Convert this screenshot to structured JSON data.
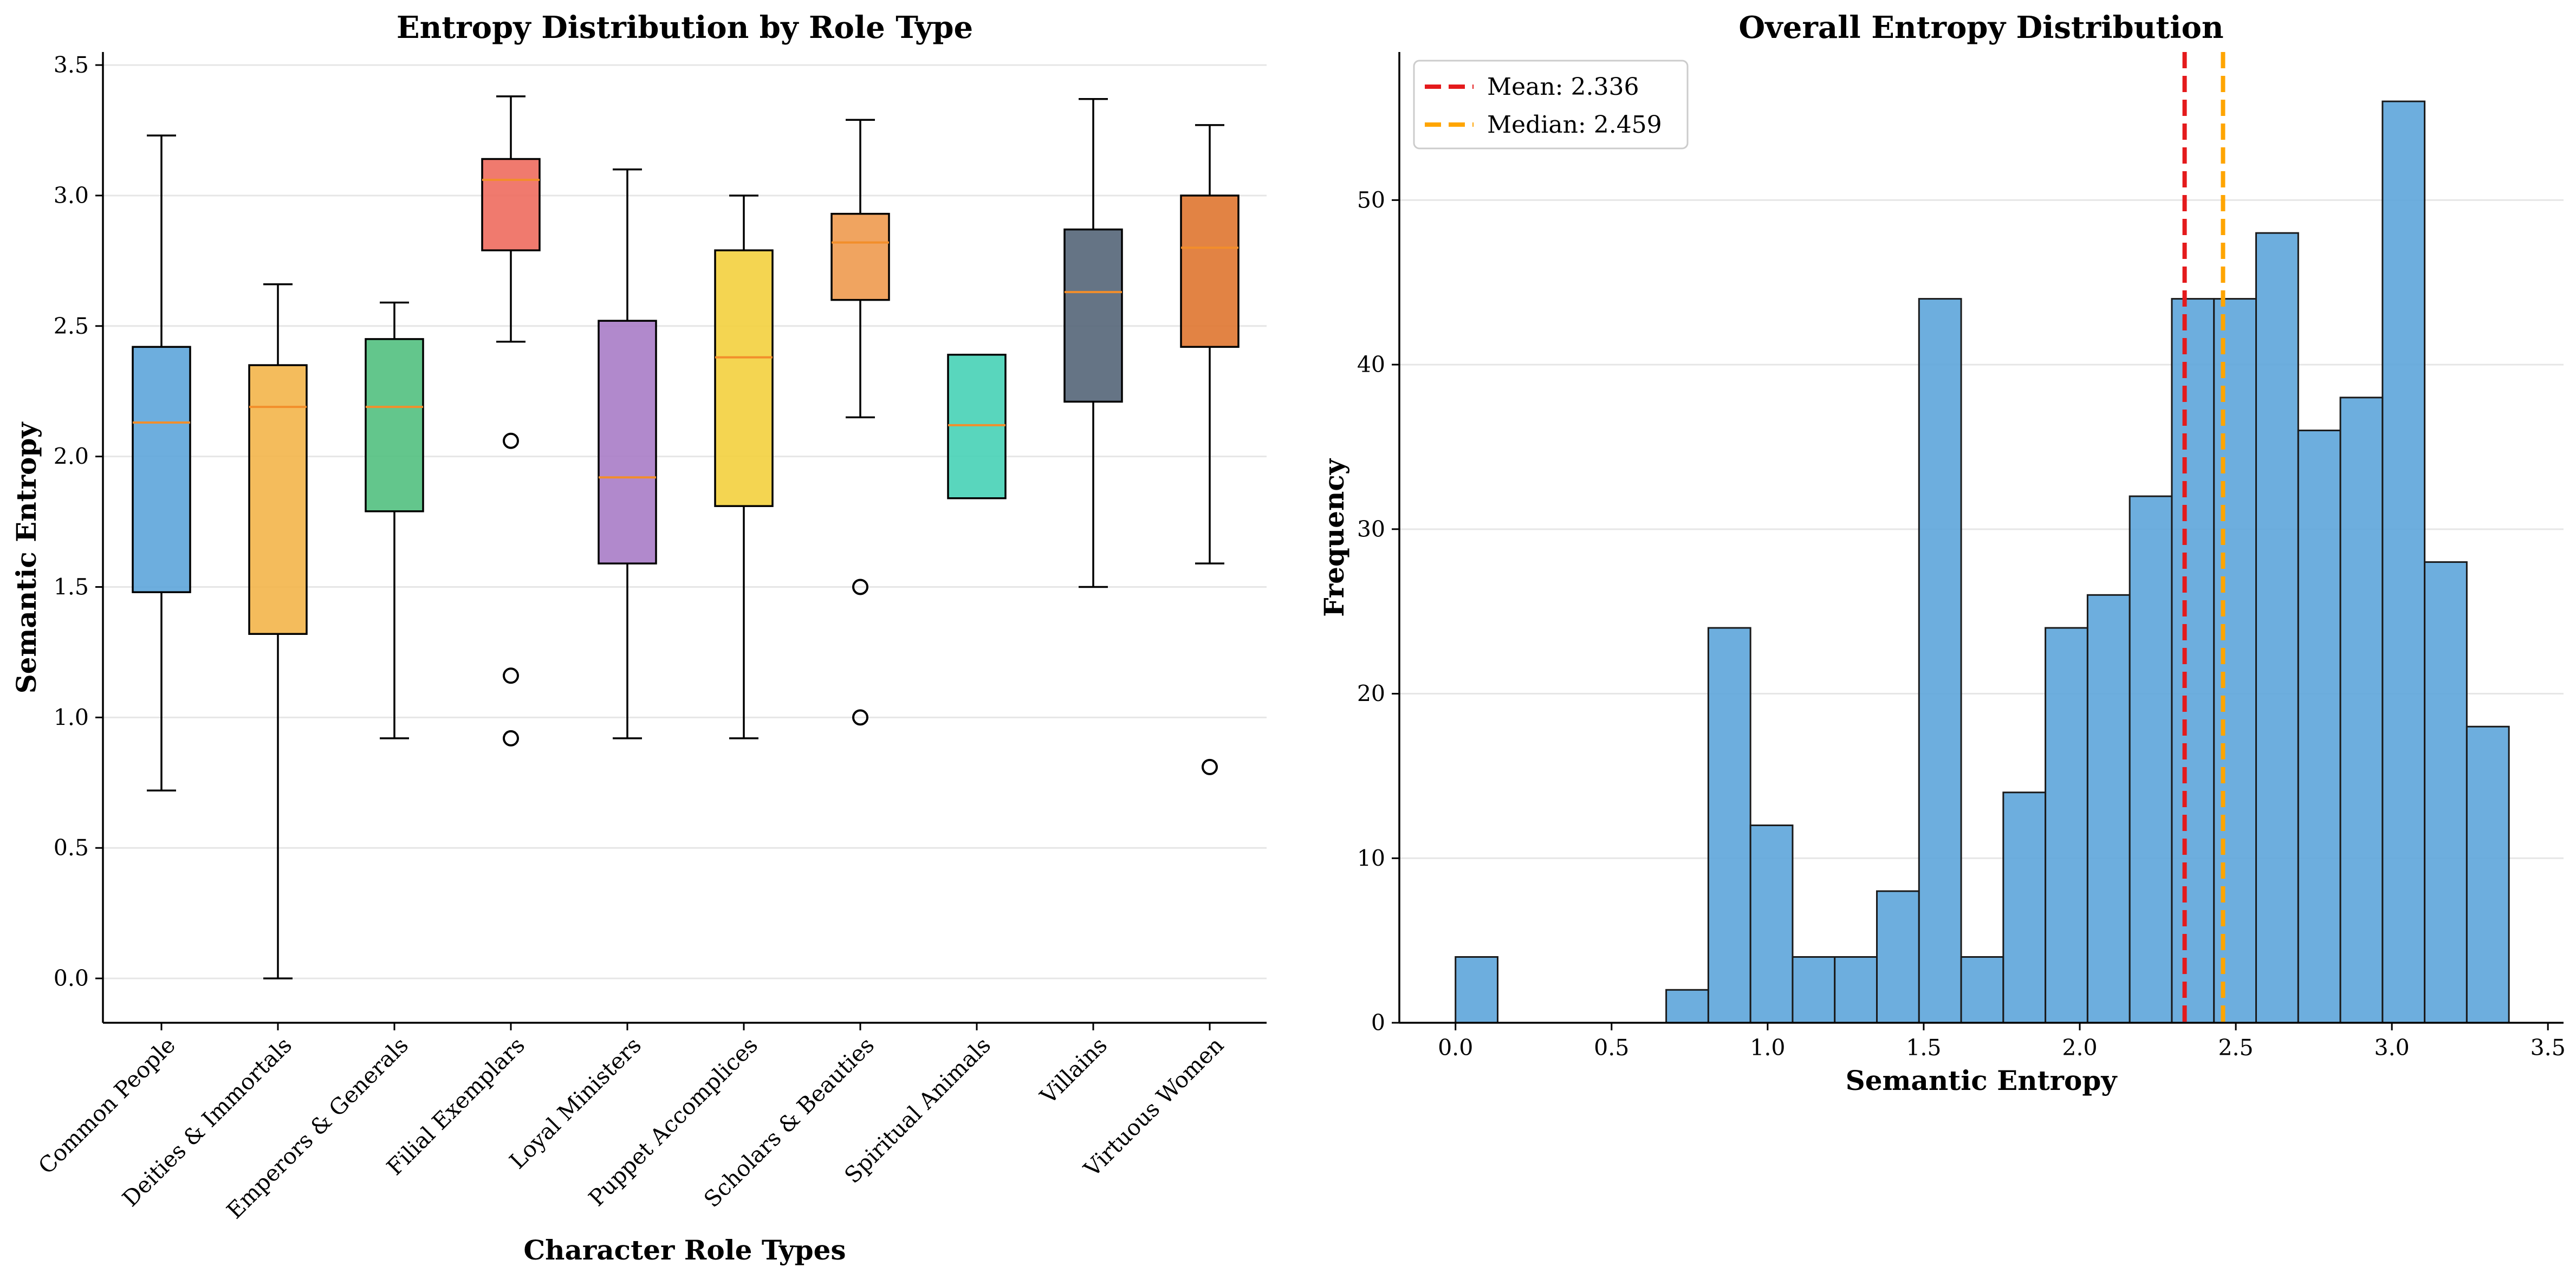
{
  "chart_data": [
    {
      "type": "box",
      "title": "Entropy Distribution by Role Type",
      "xlabel": "Character Role Types",
      "ylabel": "Semantic Entropy",
      "ylim": [
        -0.17,
        3.55
      ],
      "yticks": [
        "0.0",
        "0.5",
        "1.0",
        "1.5",
        "2.0",
        "2.5",
        "3.0",
        "3.5"
      ],
      "grid": "y",
      "categories": [
        "Common People",
        "Deities & Immortals",
        "Emperors & Generals",
        "Filial Exemplars",
        "Loyal Ministers",
        "Puppet Accomplices",
        "Scholars & Beauties",
        "Spiritual Animals",
        "Villains",
        "Virtuous Women"
      ],
      "colors": [
        "#5DA5DA",
        "#F3B54A",
        "#52C07F",
        "#EE6B5E",
        "#A97CC6",
        "#F3D03E",
        "#EE9A4F",
        "#47D1B6",
        "#546578",
        "#DF7630"
      ],
      "median_color": "#F28E2B",
      "boxes": [
        {
          "whisker_low": 0.72,
          "q1": 1.48,
          "median": 2.13,
          "q3": 2.42,
          "whisker_high": 3.23,
          "outliers": []
        },
        {
          "whisker_low": 0.0,
          "q1": 1.32,
          "median": 2.19,
          "q3": 2.35,
          "whisker_high": 2.66,
          "outliers": []
        },
        {
          "whisker_low": 0.92,
          "q1": 1.79,
          "median": 2.19,
          "q3": 2.45,
          "whisker_high": 2.59,
          "outliers": []
        },
        {
          "whisker_low": 2.44,
          "q1": 2.79,
          "median": 3.06,
          "q3": 3.14,
          "whisker_high": 3.38,
          "outliers": [
            2.06,
            1.16,
            0.92
          ]
        },
        {
          "whisker_low": 0.92,
          "q1": 1.59,
          "median": 1.92,
          "q3": 2.52,
          "whisker_high": 3.1,
          "outliers": []
        },
        {
          "whisker_low": 0.92,
          "q1": 1.81,
          "median": 2.38,
          "q3": 2.79,
          "whisker_high": 3.0,
          "outliers": []
        },
        {
          "whisker_low": 2.15,
          "q1": 2.6,
          "median": 2.82,
          "q3": 2.93,
          "whisker_high": 3.29,
          "outliers": [
            1.5,
            1.0
          ]
        },
        {
          "whisker_low": 1.84,
          "q1": 1.84,
          "median": 2.12,
          "q3": 2.39,
          "whisker_high": 2.39,
          "outliers": []
        },
        {
          "whisker_low": 1.5,
          "q1": 2.21,
          "median": 2.63,
          "q3": 2.87,
          "whisker_high": 3.37,
          "outliers": []
        },
        {
          "whisker_low": 1.59,
          "q1": 2.42,
          "median": 2.8,
          "q3": 3.0,
          "whisker_high": 3.27,
          "outliers": [
            0.81
          ]
        }
      ]
    },
    {
      "type": "histogram",
      "title": "Overall Entropy Distribution",
      "xlabel": "Semantic Entropy",
      "ylabel": "Frequency",
      "xlim": [
        -0.18,
        3.55
      ],
      "ylim": [
        0,
        59
      ],
      "xticks": [
        "0.0",
        "0.5",
        "1.0",
        "1.5",
        "2.0",
        "2.5",
        "3.0",
        "3.5"
      ],
      "yticks": [
        "0",
        "10",
        "20",
        "30",
        "40",
        "50"
      ],
      "grid": "y",
      "bar_color": "#5DA5DA",
      "bin_start": 0.0,
      "bin_width": 0.135,
      "counts": [
        4,
        0,
        0,
        0,
        0,
        2,
        24,
        12,
        4,
        4,
        8,
        44,
        4,
        14,
        24,
        26,
        32,
        44,
        44,
        48,
        36,
        38,
        56,
        28,
        18
      ],
      "reference_lines": [
        {
          "label": "Mean: 2.336",
          "value": 2.336,
          "color": "#E41A1C"
        },
        {
          "label": "Median: 2.459",
          "value": 2.459,
          "color": "#FFA500"
        }
      ],
      "legend_position": "upper-left"
    }
  ]
}
